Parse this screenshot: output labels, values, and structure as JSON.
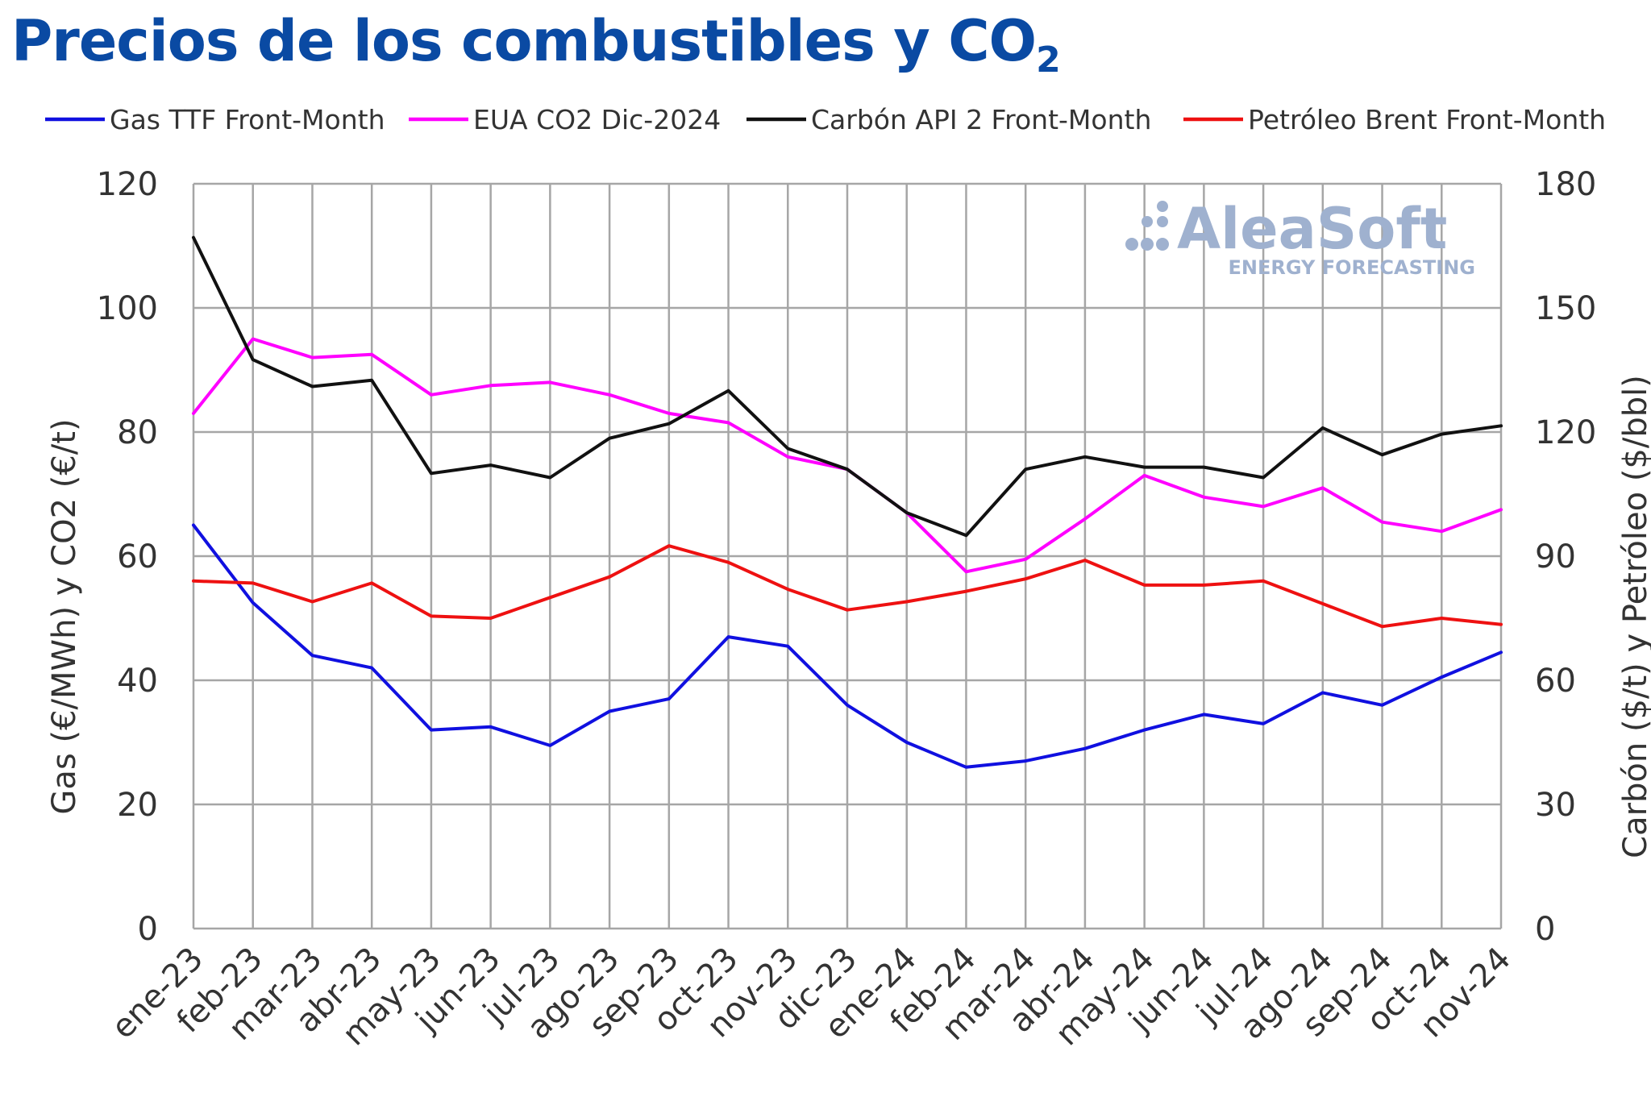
{
  "title": {
    "main": "Precios de los combustibles y CO",
    "sub": "2"
  },
  "watermark": {
    "brand": "AleaSoft",
    "tagline": "ENERGY FORECASTING"
  },
  "chart_data": {
    "type": "line",
    "categories": [
      "ene-23",
      "feb-23",
      "mar-23",
      "abr-23",
      "may-23",
      "jun-23",
      "jul-23",
      "ago-23",
      "sep-23",
      "oct-23",
      "nov-23",
      "dic-23",
      "ene-24",
      "feb-24",
      "mar-24",
      "abr-24",
      "may-24",
      "jun-24",
      "jul-24",
      "ago-24",
      "sep-24",
      "oct-24",
      "nov-24"
    ],
    "ylabel_left": "Gas (€/MWh) y CO2 (€/t)",
    "ylabel_right": "Carbón ($/t) y Petróleo ($/bbl)",
    "ylim_left": [
      0,
      120
    ],
    "ylim_right": [
      0,
      180
    ],
    "yticks_left": [
      "0",
      "20",
      "40",
      "60",
      "80",
      "100",
      "120"
    ],
    "yticks_right": [
      "0",
      "30",
      "60",
      "90",
      "120",
      "150",
      "180"
    ],
    "grid": true,
    "legend_position": "top",
    "series": [
      {
        "name": "Gas TTF Front-Month",
        "axis": "left",
        "color": "#1010e0",
        "values": [
          65,
          52.5,
          44,
          42,
          32,
          32.5,
          29.5,
          35,
          37,
          47,
          45.5,
          36,
          30,
          26,
          27,
          29,
          32,
          34.5,
          33,
          38,
          36,
          40.5,
          44.5
        ]
      },
      {
        "name": "EUA CO2 Dic-2024",
        "axis": "left",
        "color": "#ff00ff",
        "values": [
          83,
          95,
          92,
          92.5,
          86,
          87.5,
          88,
          86,
          83,
          81.5,
          76,
          74,
          67,
          57.5,
          59.5,
          66,
          73,
          69.5,
          68,
          71,
          65.5,
          64,
          67.5
        ]
      },
      {
        "name": "Carbón API 2 Front-Month",
        "axis": "right",
        "color": "#111111",
        "values": [
          167,
          137.5,
          131,
          132.5,
          110,
          112,
          109,
          118.5,
          122,
          130,
          116,
          111,
          100.5,
          95,
          111,
          114,
          111.5,
          111.5,
          109,
          121,
          114.5,
          119.5,
          121.5
        ]
      },
      {
        "name": "Petróleo Brent Front-Month",
        "axis": "right",
        "color": "#ee1111",
        "values": [
          84,
          83.5,
          79,
          83.5,
          75.5,
          75,
          80,
          85,
          92.5,
          88.5,
          82,
          77,
          79,
          81.5,
          84.5,
          89,
          83,
          83,
          84,
          78.5,
          73,
          75,
          73.5
        ]
      }
    ]
  }
}
